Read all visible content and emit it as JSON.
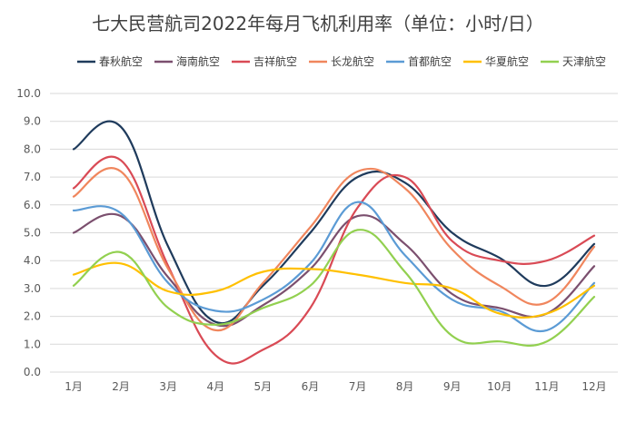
{
  "chart_data": {
    "type": "line",
    "title": "七大民营航司2022年每月飞机利用率（单位：小时/日）",
    "categories": [
      "1月",
      "2月",
      "3月",
      "4月",
      "5月",
      "6月",
      "7月",
      "8月",
      "9月",
      "10月",
      "11月",
      "12月"
    ],
    "ylim": [
      0,
      10
    ],
    "yticks": [
      "0.0",
      "1.0",
      "2.0",
      "3.0",
      "4.0",
      "5.0",
      "6.0",
      "7.0",
      "8.0",
      "9.0",
      "10.0"
    ],
    "grid": true,
    "legend_position": "top",
    "series": [
      {
        "name": "春秋航空",
        "color": "#1f3b5c",
        "values": [
          8.0,
          8.8,
          4.5,
          1.8,
          3.1,
          5.0,
          7.0,
          6.8,
          5.0,
          4.1,
          3.1,
          4.6
        ]
      },
      {
        "name": "海南航空",
        "color": "#7b4f6e",
        "values": [
          5.0,
          5.6,
          3.4,
          1.7,
          2.4,
          3.7,
          5.6,
          4.6,
          2.8,
          2.3,
          2.1,
          3.8
        ]
      },
      {
        "name": "吉祥航空",
        "color": "#d94a55",
        "values": [
          6.6,
          7.6,
          3.8,
          0.6,
          0.8,
          2.3,
          5.9,
          7.0,
          4.7,
          4.0,
          4.0,
          4.9
        ]
      },
      {
        "name": "长龙航空",
        "color": "#f0865d",
        "values": [
          6.3,
          7.2,
          3.7,
          1.5,
          3.2,
          5.2,
          7.2,
          6.6,
          4.4,
          3.1,
          2.5,
          4.5
        ]
      },
      {
        "name": "首都航空",
        "color": "#5b9bd5",
        "values": [
          5.8,
          5.7,
          3.2,
          2.2,
          2.6,
          3.9,
          6.1,
          4.2,
          2.6,
          2.2,
          1.5,
          3.2
        ]
      },
      {
        "name": "华夏航空",
        "color": "#ffc000",
        "values": [
          3.5,
          3.9,
          2.9,
          2.9,
          3.6,
          3.7,
          3.5,
          3.2,
          3.0,
          2.1,
          2.1,
          3.1
        ]
      },
      {
        "name": "天津航空",
        "color": "#92d050",
        "values": [
          3.1,
          4.3,
          2.3,
          1.7,
          2.3,
          3.1,
          5.1,
          3.6,
          1.3,
          1.1,
          1.1,
          2.7
        ]
      }
    ]
  }
}
